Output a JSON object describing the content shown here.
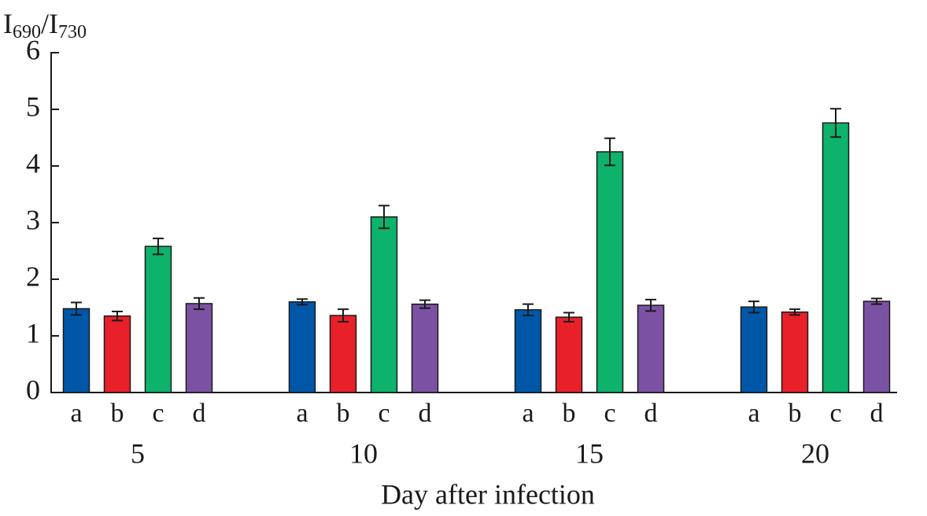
{
  "chart_data": {
    "type": "bar",
    "ylabel": [
      "I",
      "690",
      "/I",
      "730"
    ],
    "xlabel": "Day after infection",
    "categories": [
      "5",
      "10",
      "15",
      "20"
    ],
    "series": [
      {
        "name": "a",
        "color": "#0057a8",
        "values": [
          1.48,
          1.6,
          1.46,
          1.51
        ],
        "errors": [
          0.11,
          0.05,
          0.1,
          0.1
        ]
      },
      {
        "name": "b",
        "color": "#e8202a",
        "values": [
          1.35,
          1.36,
          1.33,
          1.42
        ],
        "errors": [
          0.08,
          0.11,
          0.08,
          0.05
        ]
      },
      {
        "name": "c",
        "color": "#0db26b",
        "values": [
          2.58,
          3.1,
          4.25,
          4.76
        ],
        "errors": [
          0.14,
          0.2,
          0.24,
          0.25
        ]
      },
      {
        "name": "d",
        "color": "#7b52a3",
        "values": [
          1.57,
          1.56,
          1.54,
          1.61
        ],
        "errors": [
          0.1,
          0.07,
          0.1,
          0.05
        ]
      }
    ],
    "ylim": [
      0,
      6
    ],
    "yticks": [
      0,
      1,
      2,
      3,
      4,
      5,
      6
    ]
  }
}
